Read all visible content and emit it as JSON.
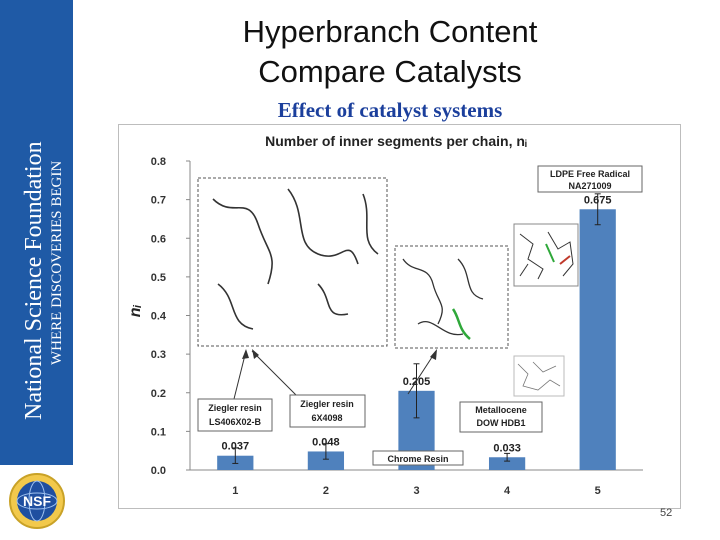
{
  "sidebar": {
    "org_name": "National Science Foundation",
    "tagline": "WHERE DISCOVERIES BEGIN",
    "logo_text": "NSF",
    "logo_icon": "nsf-globe-logo"
  },
  "slide": {
    "title_line1": "Hyperbranch Content",
    "title_line2": "Compare Catalysts",
    "subtitle": "Effect of catalyst systems",
    "page_number": "52"
  },
  "colors": {
    "sidebar": "#1f5aa6",
    "bar": "#4f81bd",
    "subtitle": "#1b3f9c"
  },
  "chart_data": {
    "type": "bar",
    "title": "Number of inner segments per chain, nᵢ",
    "ylabel": "nᵢ",
    "xlabel": "",
    "categories": [
      "1",
      "2",
      "3",
      "4",
      "5"
    ],
    "values": [
      0.037,
      0.048,
      0.205,
      0.033,
      0.675
    ],
    "value_labels": [
      "0.037",
      "0.048",
      "0.205",
      "0.033",
      "0.675"
    ],
    "error_bars": [
      0.02,
      0.02,
      0.07,
      0.01,
      0.04
    ],
    "ylim": [
      0,
      0.8
    ],
    "yticks": [
      "0.0",
      "0.1",
      "0.2",
      "0.3",
      "0.4",
      "0.5",
      "0.6",
      "0.7",
      "0.8"
    ],
    "grid": false,
    "legend": "none",
    "annotations": [
      {
        "line1": "Ziegler resin",
        "line2": "LS406X02-B"
      },
      {
        "line1": "Ziegler resin",
        "line2": "6X4098"
      },
      {
        "line1": "Chrome Resin",
        "line2": ""
      },
      {
        "line1": "Metallocene",
        "line2": "DOW HDB1"
      },
      {
        "line1": "LDPE Free Radical",
        "line2": "NA271009"
      }
    ]
  }
}
